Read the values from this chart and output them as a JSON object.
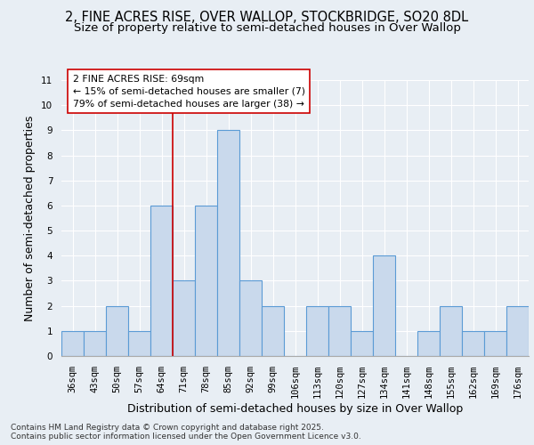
{
  "title_line1": "2, FINE ACRES RISE, OVER WALLOP, STOCKBRIDGE, SO20 8DL",
  "title_line2": "Size of property relative to semi-detached houses in Over Wallop",
  "xlabel": "Distribution of semi-detached houses by size in Over Wallop",
  "ylabel": "Number of semi-detached properties",
  "categories": [
    "36sqm",
    "43sqm",
    "50sqm",
    "57sqm",
    "64sqm",
    "71sqm",
    "78sqm",
    "85sqm",
    "92sqm",
    "99sqm",
    "106sqm",
    "113sqm",
    "120sqm",
    "127sqm",
    "134sqm",
    "141sqm",
    "148sqm",
    "155sqm",
    "162sqm",
    "169sqm",
    "176sqm"
  ],
  "values": [
    1,
    1,
    2,
    1,
    6,
    3,
    6,
    9,
    3,
    2,
    0,
    2,
    2,
    1,
    4,
    0,
    1,
    2,
    1,
    1,
    2
  ],
  "bar_color": "#c9d9ec",
  "bar_edge_color": "#5b9bd5",
  "annotation_text_line1": "2 FINE ACRES RISE: 69sqm",
  "annotation_text_line2": "← 15% of semi-detached houses are smaller (7)",
  "annotation_text_line3": "79% of semi-detached houses are larger (38) →",
  "annotation_box_color": "#ffffff",
  "annotation_box_edge": "#cc0000",
  "vline_color": "#cc0000",
  "vline_bar_index": 4.5,
  "ylim": [
    0,
    11
  ],
  "yticks": [
    0,
    1,
    2,
    3,
    4,
    5,
    6,
    7,
    8,
    9,
    10,
    11
  ],
  "background_color": "#e8eef4",
  "footer_text": "Contains HM Land Registry data © Crown copyright and database right 2025.\nContains public sector information licensed under the Open Government Licence v3.0.",
  "title_fontsize": 10.5,
  "subtitle_fontsize": 9.5,
  "axis_label_fontsize": 9,
  "tick_fontsize": 7.5,
  "footer_fontsize": 6.5
}
